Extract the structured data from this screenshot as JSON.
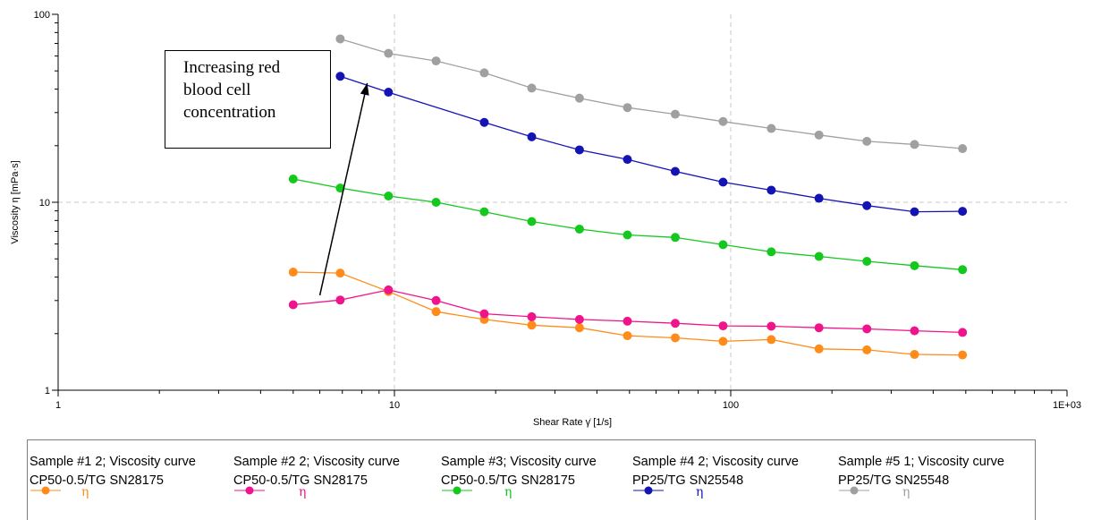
{
  "chart_data": {
    "type": "line",
    "xlabel": "Shear Rate γ̇ [1/s]",
    "ylabel": "Viscosity η [mPa·s]",
    "xscale": "log",
    "yscale": "log",
    "xlim": [
      1,
      1000
    ],
    "ylim": [
      1,
      100
    ],
    "x_tick_labels": [
      "1",
      "10",
      "100",
      "1E+03"
    ],
    "y_tick_labels": [
      "1",
      "10",
      "100"
    ],
    "grid": "dashed at decades",
    "legend_position": "bottom",
    "series": [
      {
        "name": "Sample #1 2; Viscosity curve",
        "subtitle": "CP50-0.5/TG SN28175",
        "symbol": "η",
        "color": "#ff8c1a",
        "x": [
          5,
          6.9,
          9.6,
          13.3,
          18.5,
          25.6,
          35.5,
          49.3,
          68.4,
          94.9,
          132,
          183,
          254,
          352,
          489
        ],
        "y": [
          4.25,
          4.2,
          3.35,
          2.62,
          2.38,
          2.22,
          2.15,
          1.95,
          1.9,
          1.82,
          1.86,
          1.66,
          1.64,
          1.55,
          1.54
        ]
      },
      {
        "name": "Sample #2 2; Viscosity curve",
        "subtitle": "CP50-0.5/TG SN28175",
        "symbol": "η",
        "color": "#f0148c",
        "x": [
          5,
          6.9,
          9.6,
          13.3,
          18.5,
          25.6,
          35.5,
          49.3,
          68.4,
          94.9,
          132,
          183,
          254,
          352,
          489
        ],
        "y": [
          2.85,
          3.02,
          3.42,
          3.0,
          2.55,
          2.46,
          2.38,
          2.33,
          2.27,
          2.2,
          2.19,
          2.15,
          2.12,
          2.07,
          2.03
        ]
      },
      {
        "name": "Sample #3; Viscosity curve",
        "subtitle": "CP50-0.5/TG SN28175",
        "symbol": "η",
        "color": "#14c81e",
        "x": [
          5,
          6.9,
          9.6,
          13.3,
          18.5,
          25.6,
          35.5,
          49.3,
          68.4,
          94.9,
          132,
          183,
          254,
          352,
          489
        ],
        "y": [
          13.3,
          11.9,
          10.8,
          10.0,
          8.9,
          7.9,
          7.2,
          6.7,
          6.5,
          5.95,
          5.45,
          5.15,
          4.85,
          4.6,
          4.38
        ]
      },
      {
        "name": "Sample #4 2; Viscosity curve",
        "subtitle": "PP25/TG SN25548",
        "symbol": "η",
        "color": "#1414b4",
        "x": [
          6.9,
          9.6,
          18.5,
          25.6,
          35.5,
          49.3,
          68.4,
          94.9,
          132,
          183,
          254,
          352,
          489
        ],
        "y": [
          46.8,
          38.5,
          26.6,
          22.3,
          19.0,
          16.9,
          14.6,
          12.8,
          11.6,
          10.5,
          9.6,
          8.9,
          8.95
        ]
      },
      {
        "name": "Sample #5 1; Viscosity curve",
        "subtitle": "PP25/TG SN25548",
        "symbol": "η",
        "color": "#a0a0a0",
        "x": [
          6.9,
          9.6,
          13.3,
          18.5,
          25.6,
          35.5,
          49.3,
          68.4,
          94.9,
          132,
          183,
          254,
          352,
          489
        ],
        "y": [
          74,
          62,
          56.5,
          48.8,
          40.5,
          35.8,
          31.9,
          29.4,
          26.9,
          24.7,
          22.8,
          21.1,
          20.3,
          19.3
        ]
      }
    ],
    "annotation": {
      "text_lines": [
        "Increasing red",
        "blood cell",
        "concentration"
      ],
      "arrow_from": [
        6.0,
        3.2
      ],
      "arrow_to": [
        8.3,
        43
      ]
    }
  }
}
